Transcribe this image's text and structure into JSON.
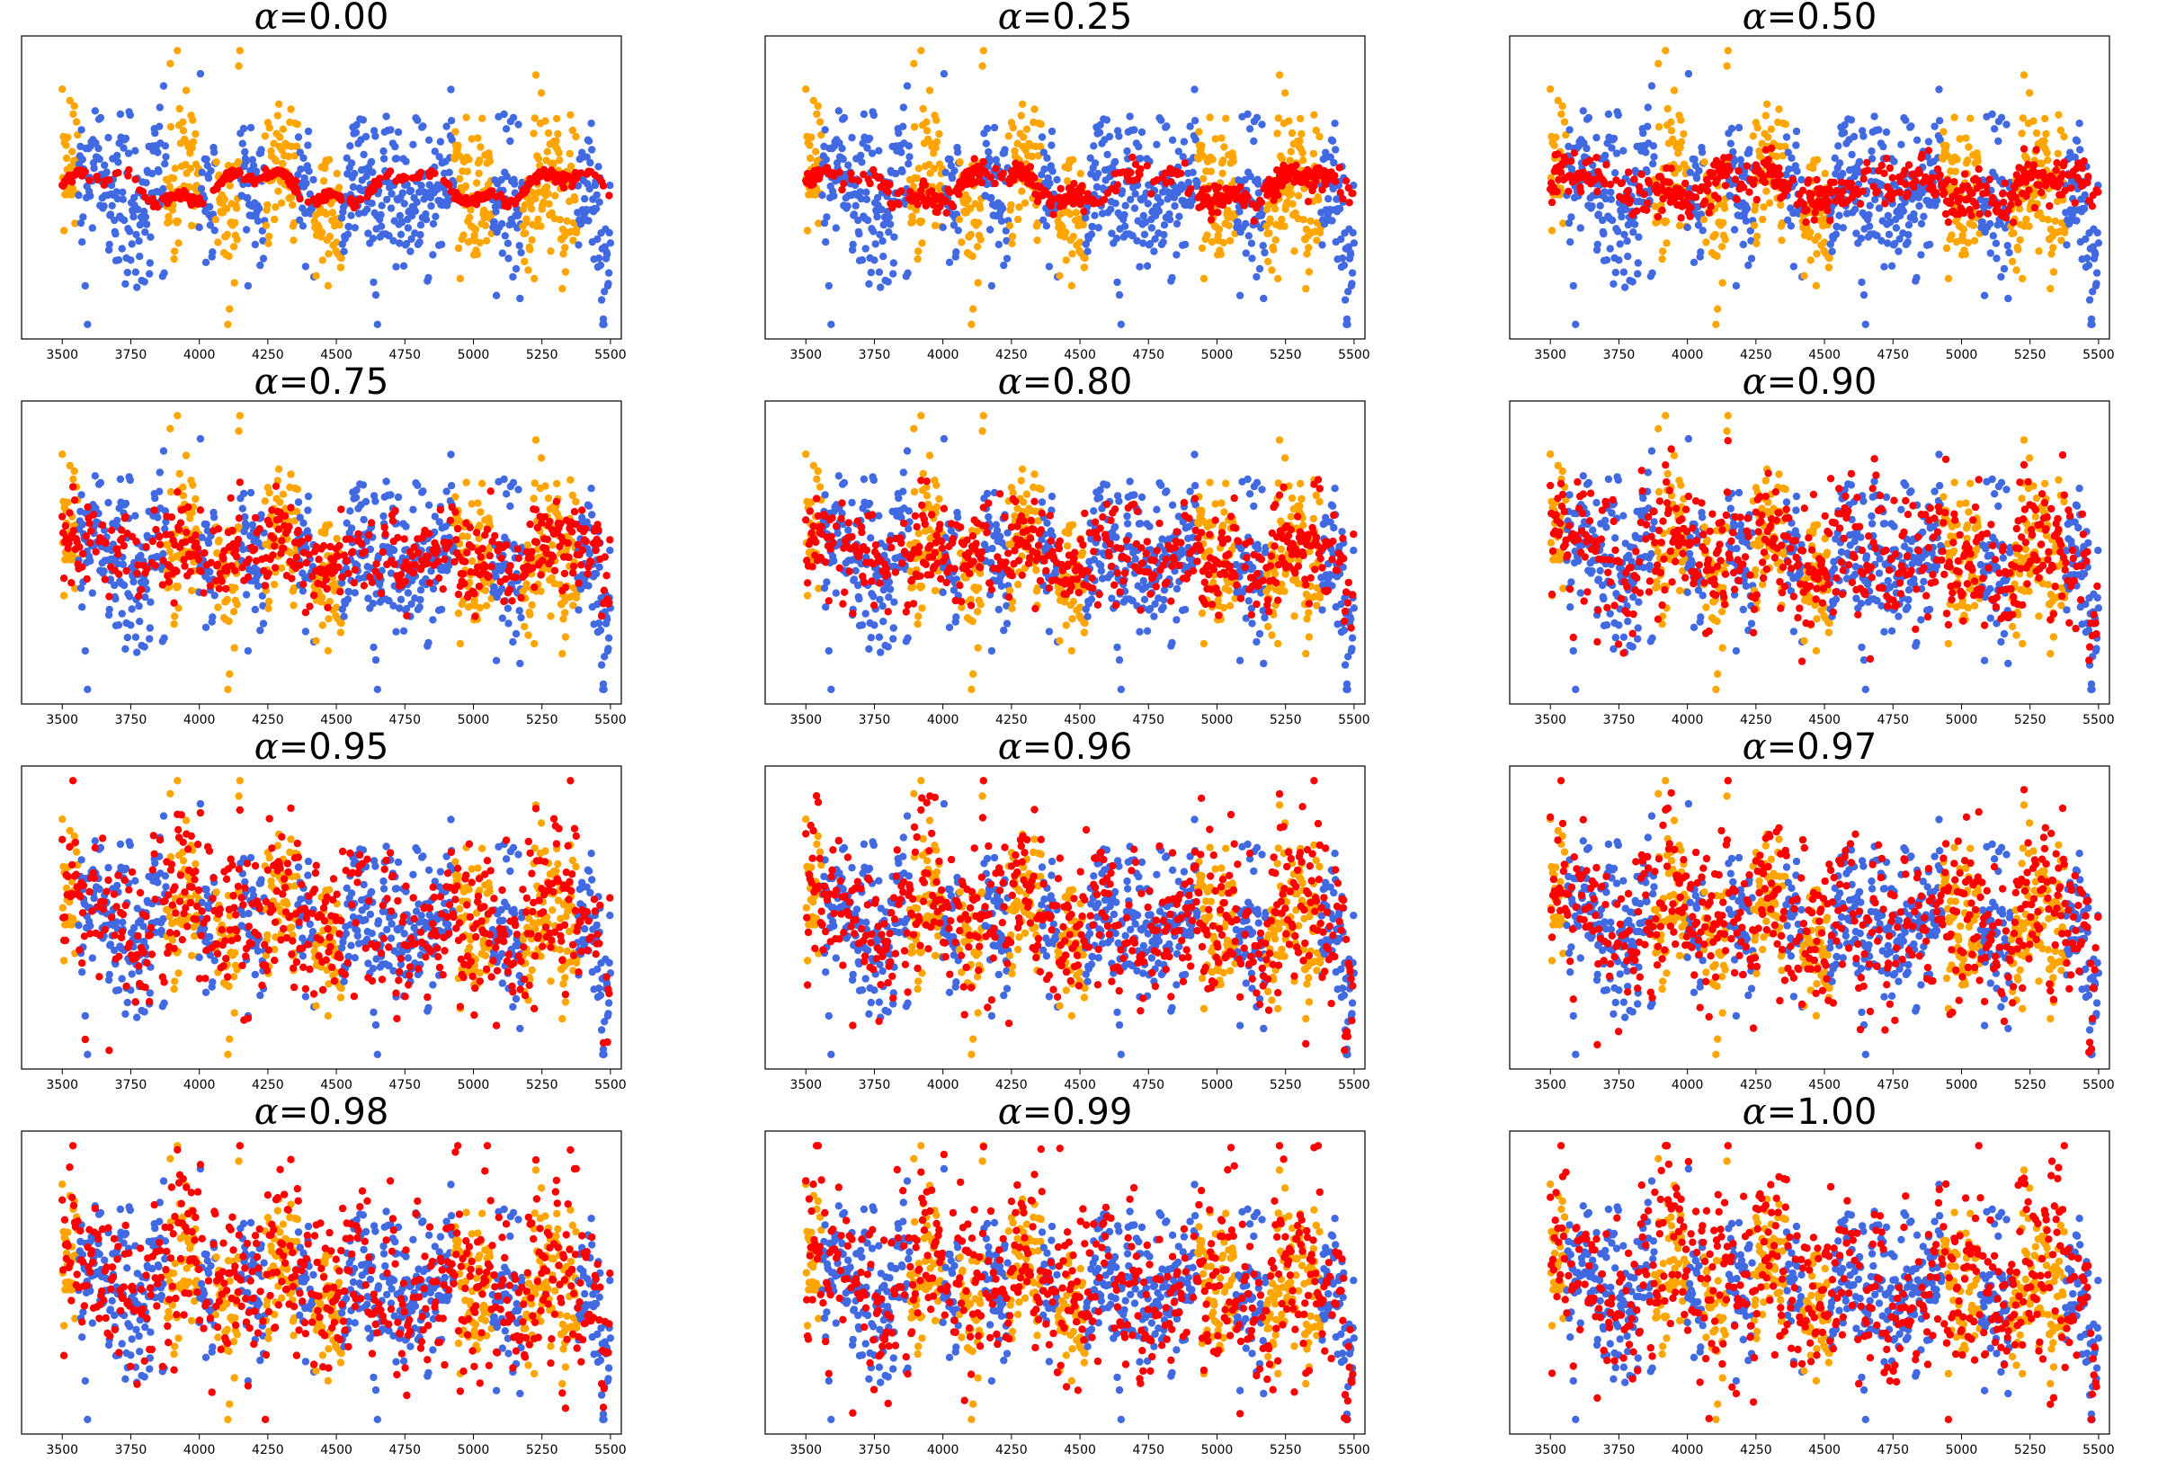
{
  "figure": {
    "colors": {
      "series_a": "#4169E1",
      "series_b": "#FFA500",
      "series_c": "#FF0000"
    },
    "symbol": "α",
    "panels": [
      {
        "title_value": "=0.00"
      },
      {
        "title_value": "=0.25"
      },
      {
        "title_value": "=0.50"
      },
      {
        "title_value": "=0.75"
      },
      {
        "title_value": "=0.80"
      },
      {
        "title_value": "=0.90"
      },
      {
        "title_value": "=0.95"
      },
      {
        "title_value": "=0.96"
      },
      {
        "title_value": "=0.97"
      },
      {
        "title_value": "=0.98"
      },
      {
        "title_value": "=0.99"
      },
      {
        "title_value": "=1.00"
      }
    ]
  },
  "chart_data": {
    "type": "scatter",
    "layout": "4x3 grid of scatter plots",
    "panel_titles": [
      "α=0.00",
      "α=0.25",
      "α=0.50",
      "α=0.75",
      "α=0.80",
      "α=0.90",
      "α=0.95",
      "α=0.96",
      "α=0.97",
      "α=0.98",
      "α=0.99",
      "α=1.00"
    ],
    "alpha_values": [
      0.0,
      0.25,
      0.5,
      0.75,
      0.8,
      0.9,
      0.95,
      0.96,
      0.97,
      0.98,
      0.99,
      1.0
    ],
    "x_ticks": [
      3500,
      3750,
      4000,
      4250,
      4500,
      4750,
      5000,
      5250,
      5500
    ],
    "x_tick_labels": [
      "3500",
      "3750",
      "4000",
      "4250",
      "4500",
      "4750",
      "5000",
      "5250",
      "5500"
    ],
    "xlim": [
      3450,
      5520
    ],
    "ylim": [
      -3.0,
      3.0
    ],
    "y_ticks_visible": false,
    "grid": false,
    "legend": "none",
    "series_colors": [
      "#4169E1",
      "#FFA500",
      "#FF0000"
    ],
    "red_weight": [
      0.0,
      0.25,
      0.5,
      0.75,
      0.8,
      0.9,
      0.95,
      0.96,
      0.97,
      0.98,
      0.99,
      1.0
    ],
    "segments": [
      {
        "x": [
          3500,
          3560
        ],
        "type": "b"
      },
      {
        "x": [
          3560,
          3880
        ],
        "type": "a"
      },
      {
        "x": [
          3880,
          4000
        ],
        "type": "b"
      },
      {
        "x": [
          4000,
          4060
        ],
        "type": "a"
      },
      {
        "x": [
          4060,
          4150
        ],
        "type": "b"
      },
      {
        "x": [
          4150,
          4240
        ],
        "type": "a"
      },
      {
        "x": [
          4240,
          4360
        ],
        "type": "b"
      },
      {
        "x": [
          4360,
          4420
        ],
        "type": "a"
      },
      {
        "x": [
          4420,
          4520
        ],
        "type": "b"
      },
      {
        "x": [
          4520,
          4930
        ],
        "type": "a"
      },
      {
        "x": [
          4930,
          5070
        ],
        "type": "b"
      },
      {
        "x": [
          5070,
          5180
        ],
        "type": "a"
      },
      {
        "x": [
          5180,
          5380
        ],
        "type": "b"
      },
      {
        "x": [
          5380,
          5500
        ],
        "type": "a"
      }
    ],
    "peaks": [
      {
        "x": 3900,
        "y": 2.1
      },
      {
        "x": 4180,
        "y": 1.9
      },
      {
        "x": 4300,
        "y": 2.3
      },
      {
        "x": 4570,
        "y": 2.5
      },
      {
        "x": 4750,
        "y": 2.7
      },
      {
        "x": 5200,
        "y": 2.8
      },
      {
        "x": 5310,
        "y": 1.8
      }
    ],
    "troughs": [
      {
        "x": 4250,
        "y": -2.2
      },
      {
        "x": 4500,
        "y": -2.1
      },
      {
        "x": 4650,
        "y": -1.9
      },
      {
        "x": 5000,
        "y": -2.4
      },
      {
        "x": 5330,
        "y": -2.3
      },
      {
        "x": 5480,
        "y": -2.7
      }
    ]
  }
}
